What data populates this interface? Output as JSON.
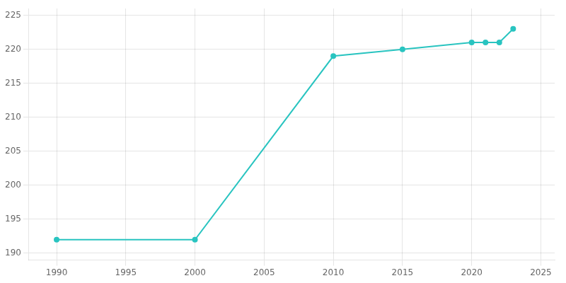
{
  "chart_data": {
    "type": "line",
    "x": [
      1990,
      2000,
      2010,
      2015,
      2020,
      2021,
      2022,
      2023
    ],
    "values": [
      192,
      192,
      219,
      220,
      221,
      221,
      221,
      223
    ],
    "color": "#29c4c0",
    "marker": "circle",
    "xlim": [
      1988,
      2026
    ],
    "xticks": [
      1990,
      1995,
      2000,
      2005,
      2010,
      2015,
      2020,
      2025
    ],
    "ylim": [
      189,
      226
    ],
    "yticks": [
      190,
      195,
      200,
      205,
      210,
      215,
      220,
      225
    ],
    "grid": true
  }
}
